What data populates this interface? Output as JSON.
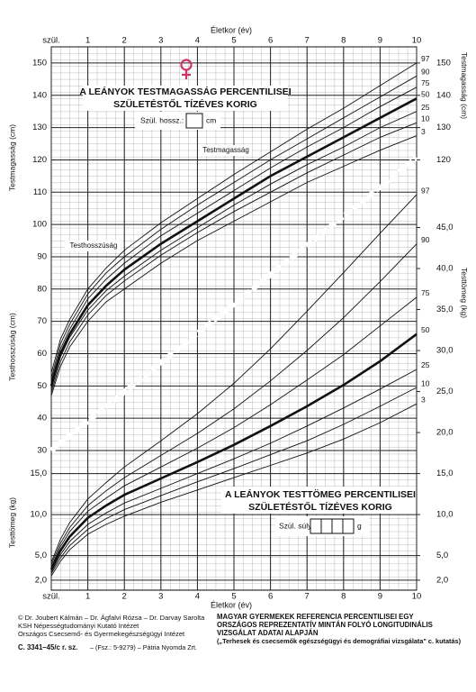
{
  "chart_data": [
    {
      "type": "line",
      "title": [
        "A LEÁNYOK TESTMAGASSÁG PERCENTILISEI",
        "SZÜLETÉSTŐL TÍZÉVES KORIG"
      ],
      "birth_field": "Szül. hossz.:",
      "birth_unit": "cm",
      "xlabel": "Életkor (év)",
      "ylabel": "Testmagasság (cm)",
      "ylabel_lower": "Testhosszúság (cm)",
      "ylabel_right": "Testmagasság (cm)",
      "annotations": [
        "Testmagasság",
        "Testhosszúság"
      ],
      "x": [
        0,
        0.25,
        0.5,
        1,
        1.5,
        2,
        3,
        4,
        5,
        6,
        7,
        8,
        9,
        10
      ],
      "xlim": [
        0,
        10
      ],
      "xticks": [
        {
          "value": 0,
          "label": "szül."
        },
        1,
        2,
        3,
        4,
        5,
        6,
        7,
        8,
        9,
        10
      ],
      "ylim": [
        30,
        155
      ],
      "yticks": [
        30,
        40,
        50,
        60,
        70,
        80,
        90,
        100,
        110,
        120,
        130,
        140,
        150
      ],
      "yticks_right": [
        120,
        130,
        140,
        150
      ],
      "grid": true,
      "series": [
        {
          "name": "97",
          "color": "#111",
          "bold": false,
          "values": [
            54,
            64.5,
            70.5,
            80,
            86.5,
            92,
            100.5,
            108,
            115.5,
            122.5,
            129.5,
            136,
            143,
            150
          ]
        },
        {
          "name": "90",
          "color": "#111",
          "bold": false,
          "values": [
            52.5,
            63,
            69,
            78.5,
            85,
            90,
            98.5,
            106,
            113,
            120,
            126.5,
            133,
            139.5,
            146
          ]
        },
        {
          "name": "75",
          "color": "#111",
          "bold": false,
          "values": [
            51.5,
            61.5,
            67.5,
            77,
            83,
            88,
            96.5,
            103.5,
            110.5,
            117.5,
            124,
            130,
            136.5,
            142.5
          ]
        },
        {
          "name": "50",
          "color": "#111",
          "bold": true,
          "values": [
            50,
            60,
            66,
            75,
            81,
            86,
            94,
            101,
            108,
            115,
            121,
            127,
            133,
            139
          ]
        },
        {
          "name": "25",
          "color": "#111",
          "bold": false,
          "values": [
            49,
            59,
            65,
            73.5,
            79.5,
            84,
            92,
            99,
            106,
            112.5,
            118.5,
            124,
            130,
            135
          ]
        },
        {
          "name": "10",
          "color": "#111",
          "bold": false,
          "values": [
            48,
            57.5,
            63.5,
            72,
            78,
            82.5,
            90.5,
            97.5,
            104,
            110,
            116,
            121.5,
            127,
            131.5
          ]
        },
        {
          "name": "3",
          "color": "#111",
          "bold": false,
          "values": [
            47,
            56,
            62,
            70,
            76,
            80,
            88,
            95,
            101,
            107,
            113,
            118,
            123,
            127.5
          ]
        }
      ]
    },
    {
      "type": "line",
      "title": [
        "A LEÁNYOK TESTTÖMEG PERCENTILISEI",
        "SZÜLETÉSTŐL TÍZÉVES KORIG"
      ],
      "birth_field": "Szül. súly:",
      "birth_unit": "g",
      "xlabel": "Életkor (év)",
      "ylabel": "Testtömeg (kg)",
      "ylabel_right": "Testtömeg (kg)",
      "x": [
        0,
        0.25,
        0.5,
        1,
        1.5,
        2,
        3,
        4,
        5,
        6,
        7,
        8,
        9,
        10
      ],
      "xlim": [
        0,
        10
      ],
      "xticks": [
        {
          "value": 0,
          "label": "szül."
        },
        1,
        2,
        3,
        4,
        5,
        6,
        7,
        8,
        9,
        10
      ],
      "ylim": [
        1,
        50
      ],
      "yticks": [
        {
          "value": 2,
          "label": "2,0"
        },
        {
          "value": 5,
          "label": "5,0"
        },
        {
          "value": 10,
          "label": "10,0"
        },
        {
          "value": 15,
          "label": "15,0"
        }
      ],
      "yticks_right": [
        {
          "value": 2,
          "label": "2,0"
        },
        {
          "value": 5,
          "label": "5,0"
        },
        {
          "value": 10,
          "label": "10,0"
        },
        {
          "value": 15,
          "label": "15,0"
        },
        {
          "value": 20,
          "label": "20,0"
        },
        {
          "value": 25,
          "label": "25,0"
        },
        {
          "value": 30,
          "label": "30,0"
        },
        {
          "value": 35,
          "label": "35,0"
        },
        {
          "value": 40,
          "label": "40,0"
        },
        {
          "value": 45,
          "label": "45,0"
        }
      ],
      "grid": true,
      "series": [
        {
          "name": "97",
          "color": "#111",
          "bold": false,
          "values": [
            4.2,
            7,
            9,
            11.9,
            13.9,
            15.8,
            19,
            22.3,
            26,
            30.2,
            34.8,
            39.5,
            44.3,
            49
          ]
        },
        {
          "name": "90",
          "color": "#111",
          "bold": false,
          "values": [
            3.9,
            6.5,
            8.4,
            11.1,
            12.9,
            14.5,
            17.2,
            19.9,
            22.9,
            26.3,
            30,
            34,
            38.4,
            43
          ]
        },
        {
          "name": "75",
          "color": "#111",
          "bold": false,
          "values": [
            3.6,
            6.1,
            7.9,
            10.4,
            12,
            13.5,
            15.8,
            18.1,
            20.6,
            23.4,
            26.4,
            29.5,
            33,
            36.5
          ]
        },
        {
          "name": "50",
          "color": "#111",
          "bold": true,
          "values": [
            3.3,
            5.6,
            7.3,
            9.6,
            11.1,
            12.4,
            14.4,
            16.4,
            18.5,
            20.8,
            23.2,
            25.8,
            28.7,
            32
          ]
        },
        {
          "name": "25",
          "color": "#111",
          "bold": false,
          "values": [
            3,
            5.1,
            6.7,
            8.8,
            10.2,
            11.4,
            13.2,
            15,
            16.8,
            18.7,
            20.8,
            23,
            25.3,
            27.7
          ]
        },
        {
          "name": "10",
          "color": "#111",
          "bold": false,
          "values": [
            2.8,
            4.7,
            6.2,
            8.2,
            9.5,
            10.6,
            12.3,
            14,
            15.6,
            17.3,
            19,
            21,
            23.2,
            25.5
          ]
        },
        {
          "name": "3",
          "color": "#111",
          "bold": false,
          "values": [
            2.5,
            4.3,
            5.7,
            7.6,
            8.8,
            9.8,
            11.5,
            13,
            14.5,
            16,
            17.5,
            19.2,
            21.2,
            23.5
          ]
        }
      ]
    }
  ],
  "footer": {
    "authors": [
      "© Dr. Joubert Kálmán – Dr. Ágfalvi Rózsa – Dr. Darvay Sarolta",
      "KSH Népességtudományi Kutató Intézet",
      "Országos Csecsemő- és Gyermekegészségügyi Intézet"
    ],
    "code": "C. 3341–45/c r. sz.",
    "printer": "– (Fsz.: 5-9279) – Pátria Nyomda Zrt.",
    "description": [
      "MAGYAR GYERMEKEK REFERENCIA PERCENTILISEI EGY",
      "ORSZÁGOS REPREZENTATÍV MINTÁN FOLYÓ LONGITUDINÁLIS",
      "VIZSGÁLAT ADATAI ALAPJÁN"
    ],
    "study": "(„Terhesek és csecsemők egészségügyi és demográfiai vizsgálata\" c. kutatás)"
  }
}
